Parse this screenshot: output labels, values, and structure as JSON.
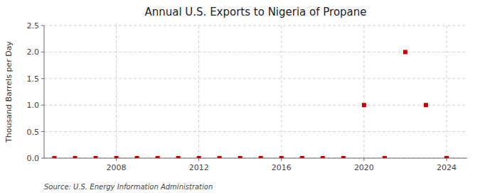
{
  "chart_data": {
    "type": "scatter",
    "title": "Annual U.S. Exports to Nigeria of Propane",
    "ylabel": "Thousand Barrels per Day",
    "annotations": [
      "Source: U.S. Energy Information Administration"
    ],
    "x": [
      2005,
      2006,
      2007,
      2008,
      2009,
      2010,
      2011,
      2012,
      2013,
      2014,
      2015,
      2016,
      2017,
      2018,
      2019,
      2020,
      2021,
      2022,
      2023,
      2024
    ],
    "values": [
      0.0,
      0.0,
      0.0,
      0.0,
      0.0,
      0.0,
      0.0,
      0.0,
      0.0,
      0.0,
      0.0,
      0.0,
      0.0,
      0.0,
      0.0,
      1.0,
      0.0,
      2.0,
      1.0,
      0.0
    ],
    "color": "#cc0000",
    "marker": "square",
    "grid": true,
    "xlim": [
      2004.5,
      2025.0
    ],
    "ylim": [
      0,
      2.5
    ],
    "xticks": [
      2008,
      2012,
      2016,
      2020,
      2024
    ],
    "yticks": [
      {
        "value": 0,
        "label": "0.0"
      },
      0.5,
      {
        "value": 1,
        "label": "1.0"
      },
      1.5,
      {
        "value": 2,
        "label": "2.0"
      },
      2.5
    ]
  }
}
